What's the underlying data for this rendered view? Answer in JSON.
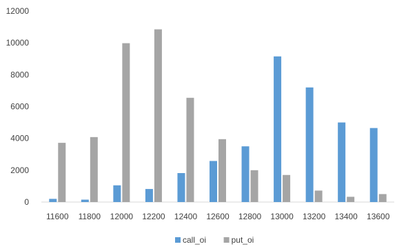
{
  "chart_data": {
    "type": "bar",
    "categories": [
      "11600",
      "11800",
      "12000",
      "12200",
      "12400",
      "12600",
      "12800",
      "13000",
      "13200",
      "13400",
      "13600"
    ],
    "series": [
      {
        "name": "call_oi",
        "color": "#5b9bd5",
        "values": [
          200,
          150,
          1050,
          820,
          1820,
          2580,
          3500,
          9150,
          7200,
          5000,
          4650
        ]
      },
      {
        "name": "put_oi",
        "color": "#a5a5a5",
        "values": [
          3720,
          4080,
          9980,
          10850,
          6550,
          3950,
          2000,
          1700,
          720,
          330,
          500
        ]
      }
    ],
    "ylim": [
      0,
      12000
    ],
    "yticks": [
      0,
      2000,
      4000,
      6000,
      8000,
      10000,
      12000
    ],
    "grid": false,
    "legend": "bottom"
  }
}
